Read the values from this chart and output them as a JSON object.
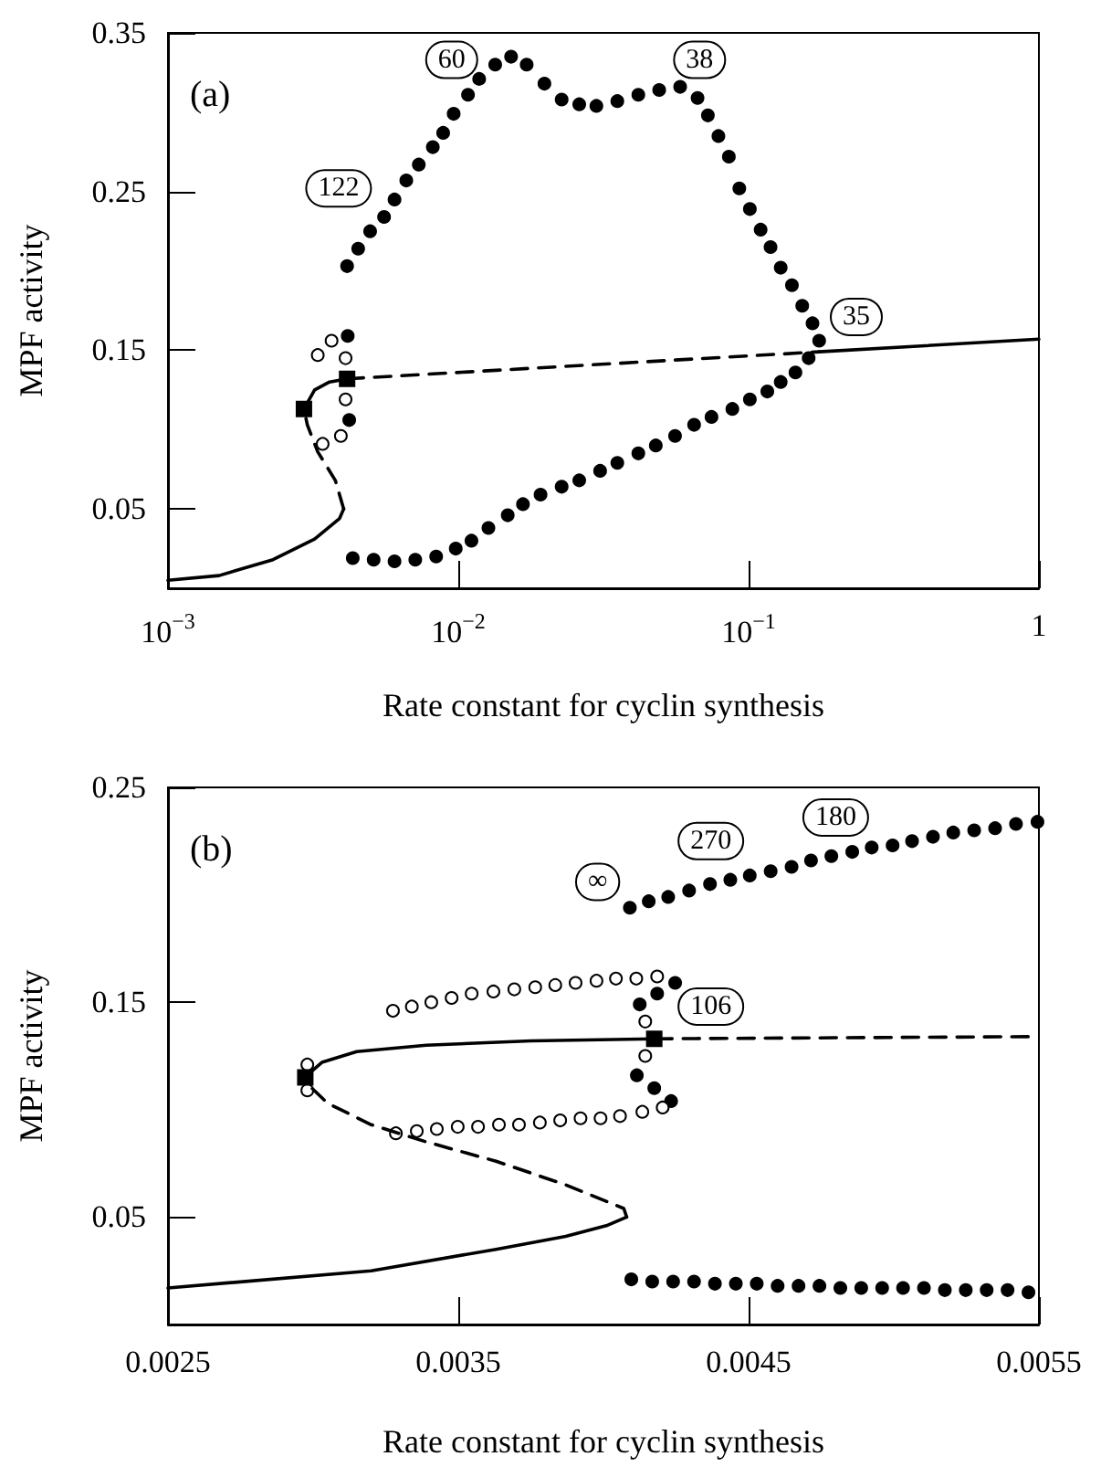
{
  "chart_data": [
    {
      "type": "line",
      "xlabel": "Rate constant for cyclin synthesis",
      "ylabel": "MPF activity",
      "log": "x",
      "xlim": [
        0.001,
        1
      ],
      "xticks": [
        {
          "value": 0.001,
          "label": "10$^{−3}$"
        },
        {
          "value": 0.01,
          "label": "10$^{−2}$"
        },
        {
          "value": 0.1,
          "label": "10$^{−1}$"
        },
        1
      ],
      "ylim": [
        0,
        0.35
      ],
      "yticks": [
        0.05,
        0.15,
        0.25,
        0.35
      ],
      "annotations": [
        "(a)",
        {
          "text": "122",
          "x": 0.00387,
          "y": 0.252
        },
        {
          "text": "60",
          "x": 0.00949,
          "y": 0.333
        },
        {
          "text": "38",
          "x": 0.0678,
          "y": 0.333
        },
        {
          "text": "35",
          "x": 0.235,
          "y": 0.171
        }
      ],
      "series": [
        {
          "type": "line",
          "line_style": "solid",
          "color": "#000000",
          "x": [
            0.001,
            0.0015,
            0.0023,
            0.0032,
            0.0039,
            0.00403
          ],
          "values": [
            0.005,
            0.008,
            0.018,
            0.031,
            0.044,
            0.05
          ]
        },
        {
          "type": "line",
          "line_style": "dashed",
          "color": "#000000",
          "x": [
            0.00403,
            0.00377,
            0.00328,
            0.00302,
            0.00294
          ],
          "values": [
            0.05,
            0.068,
            0.086,
            0.103,
            0.113
          ]
        },
        {
          "type": "line",
          "line_style": "solid",
          "color": "#000000",
          "x": [
            0.00294,
            0.0032,
            0.0036,
            0.00414
          ],
          "values": [
            0.113,
            0.125,
            0.13,
            0.132
          ]
        },
        {
          "type": "line",
          "line_style": "dashed",
          "color": "#000000",
          "x": [
            0.00414,
            0.175
          ],
          "values": [
            0.132,
            0.149
          ]
        },
        {
          "type": "line",
          "line_style": "solid",
          "color": "#000000",
          "x": [
            0.175,
            1
          ],
          "values": [
            0.149,
            0.157
          ]
        },
        {
          "type": "scatter",
          "marker": "circle",
          "color": "#000000",
          "x": [
            0.00414,
            0.00452,
            0.00497,
            0.00555,
            0.00603,
            0.00662,
            0.00731,
            0.00817,
            0.00887,
            0.00964,
            0.0108,
            0.0118,
            0.0134,
            0.0152,
            0.0172,
            0.0198,
            0.0227,
            0.0261,
            0.0299,
            0.0353,
            0.0417,
            0.0492,
            0.0581,
            0.0667,
            0.0724,
            0.0787,
            0.0855,
            0.0929,
            0.101,
            0.11,
            0.119,
            0.129,
            0.141,
            0.153,
            0.166,
            0.175,
            0.00433,
            0.00511,
            0.00603,
            0.00711,
            0.00839,
            0.0098,
            0.0111,
            0.0127,
            0.0148,
            0.0167,
            0.0192,
            0.0227,
            0.0261,
            0.0308,
            0.0353,
            0.0417,
            0.0479,
            0.0558,
            0.0649,
            0.0745,
            0.0879,
            0.101,
            0.116,
            0.129,
            0.145,
            0.161,
            0.00416,
            0.00421
          ],
          "values": [
            0.203,
            0.214,
            0.225,
            0.234,
            0.245,
            0.257,
            0.267,
            0.278,
            0.287,
            0.299,
            0.311,
            0.321,
            0.33,
            0.335,
            0.33,
            0.318,
            0.308,
            0.305,
            0.304,
            0.307,
            0.311,
            0.314,
            0.316,
            0.309,
            0.298,
            0.285,
            0.272,
            0.252,
            0.239,
            0.226,
            0.215,
            0.202,
            0.191,
            0.178,
            0.167,
            0.156,
            0.019,
            0.018,
            0.017,
            0.018,
            0.02,
            0.025,
            0.03,
            0.038,
            0.046,
            0.053,
            0.059,
            0.064,
            0.068,
            0.074,
            0.079,
            0.085,
            0.09,
            0.096,
            0.103,
            0.108,
            0.113,
            0.119,
            0.124,
            0.13,
            0.136,
            0.145,
            0.159,
            0.106
          ]
        },
        {
          "type": "scatter",
          "marker": "circle",
          "color": "#ffffff",
          "x": [
            0.00328,
            0.00366,
            0.00409,
            0.00409,
            0.00394,
            0.00341
          ],
          "values": [
            0.147,
            0.156,
            0.145,
            0.119,
            0.096,
            0.091
          ]
        },
        {
          "type": "scatter",
          "marker": "square",
          "color": "#000000",
          "x": [
            0.00294,
            0.00414
          ],
          "values": [
            0.113,
            0.132
          ]
        }
      ]
    },
    {
      "type": "line",
      "xlabel": "Rate constant for cyclin synthesis",
      "ylabel": "MPF activity",
      "xlim": [
        0.0025,
        0.0055
      ],
      "xticks": [
        0.0025,
        0.0035,
        0.0045,
        0.0055
      ],
      "ylim": [
        0,
        0.25
      ],
      "yticks": [
        0.05,
        0.15,
        0.25
      ],
      "annotations": [
        "(b)",
        {
          "text": "∞",
          "x": 0.00398,
          "y": 0.206
        },
        {
          "text": "270",
          "x": 0.00437,
          "y": 0.225
        },
        {
          "text": "180",
          "x": 0.0048,
          "y": 0.236
        },
        {
          "text": "106",
          "x": 0.00437,
          "y": 0.148
        }
      ],
      "series": [
        {
          "type": "line",
          "line_style": "solid",
          "color": "#000000",
          "x": [
            0.0025,
            0.0032,
            0.00363,
            0.00387,
            0.00401,
            0.00408
          ],
          "values": [
            0.017,
            0.025,
            0.035,
            0.041,
            0.046,
            0.05
          ]
        },
        {
          "type": "line",
          "line_style": "dashed",
          "color": "#000000",
          "x": [
            0.00408,
            0.00407,
            0.00387,
            0.00363,
            0.00339,
            0.0032,
            0.00305,
            0.00298,
            0.00297
          ],
          "values": [
            0.05,
            0.054,
            0.065,
            0.076,
            0.085,
            0.093,
            0.103,
            0.112,
            0.115
          ]
        },
        {
          "type": "line",
          "line_style": "solid",
          "color": "#000000",
          "x": [
            0.00297,
            0.00303,
            0.00315,
            0.00339,
            0.00375,
            0.00418
          ],
          "values": [
            0.115,
            0.122,
            0.127,
            0.13,
            0.132,
            0.133
          ]
        },
        {
          "type": "line",
          "line_style": "dashed",
          "color": "#000000",
          "x": [
            0.00418,
            0.0055
          ],
          "values": [
            0.133,
            0.134
          ]
        },
        {
          "type": "scatter",
          "marker": "circle",
          "color": "#000000",
          "x": [
            0.004091,
            0.004156,
            0.004223,
            0.004295,
            0.004367,
            0.004437,
            0.004504,
            0.004576,
            0.004648,
            0.004715,
            0.004785,
            0.004857,
            0.004924,
            0.004996,
            0.005063,
            0.005135,
            0.005205,
            0.005277,
            0.005349,
            0.005421,
            0.005495,
            0.004096,
            0.004168,
            0.00424,
            0.004312,
            0.004384,
            0.004456,
            0.004528,
            0.0046,
            0.004672,
            0.004744,
            0.004816,
            0.004888,
            0.00496,
            0.005032,
            0.005104,
            0.005176,
            0.005248,
            0.00532,
            0.005392,
            0.005464,
            0.004247,
            0.004185,
            0.004125,
            0.004115,
            0.004175,
            0.004233
          ],
          "values": [
            0.194,
            0.197,
            0.199,
            0.202,
            0.205,
            0.207,
            0.209,
            0.211,
            0.213,
            0.216,
            0.218,
            0.22,
            0.222,
            0.223,
            0.225,
            0.227,
            0.229,
            0.23,
            0.231,
            0.233,
            0.234,
            0.021,
            0.02,
            0.02,
            0.02,
            0.019,
            0.019,
            0.019,
            0.018,
            0.018,
            0.018,
            0.017,
            0.017,
            0.017,
            0.017,
            0.017,
            0.016,
            0.016,
            0.016,
            0.016,
            0.015,
            0.159,
            0.154,
            0.149,
            0.116,
            0.11,
            0.104
          ]
        },
        {
          "type": "scatter",
          "marker": "circle",
          "color": "#ffffff",
          "x": [
            0.003275,
            0.00334,
            0.003407,
            0.003477,
            0.003546,
            0.003621,
            0.003693,
            0.003765,
            0.003834,
            0.003904,
            0.003976,
            0.004043,
            0.004113,
            0.004185,
            0.004144,
            0.004144,
            0.00298,
            0.00298,
            0.003285,
            0.003357,
            0.003426,
            0.003498,
            0.003568,
            0.00364,
            0.003709,
            0.003781,
            0.003851,
            0.003921,
            0.00399,
            0.004057,
            0.004134,
            0.004204
          ],
          "values": [
            0.146,
            0.148,
            0.15,
            0.152,
            0.154,
            0.155,
            0.156,
            0.157,
            0.158,
            0.159,
            0.16,
            0.161,
            0.161,
            0.162,
            0.141,
            0.125,
            0.121,
            0.109,
            0.089,
            0.09,
            0.091,
            0.092,
            0.092,
            0.093,
            0.093,
            0.094,
            0.095,
            0.096,
            0.096,
            0.097,
            0.099,
            0.101
          ]
        },
        {
          "type": "scatter",
          "marker": "square",
          "color": "#000000",
          "x": [
            0.002973,
            0.004175
          ],
          "values": [
            0.115,
            0.133
          ]
        }
      ]
    }
  ]
}
